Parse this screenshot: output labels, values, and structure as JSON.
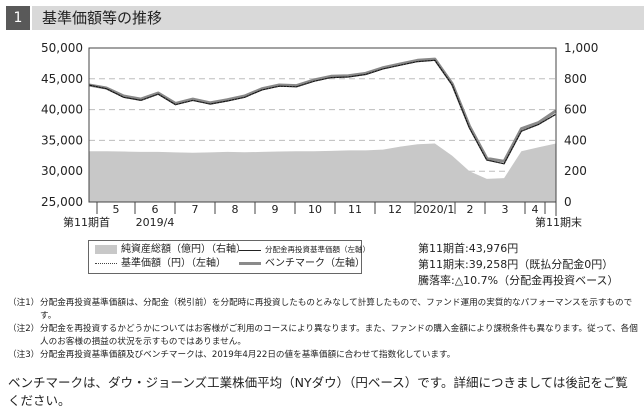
{
  "section": {
    "number": "1",
    "title": "基準価額等の推移"
  },
  "chart_data": {
    "type": "line",
    "left_axis": {
      "ticks": [
        "50,000",
        "45,000",
        "40,000",
        "35,000",
        "30,000",
        "25,000"
      ],
      "range": [
        25000,
        50000
      ]
    },
    "right_axis": {
      "ticks": [
        "1,000",
        "800",
        "600",
        "400",
        "200",
        "0"
      ],
      "range": [
        0,
        1000
      ]
    },
    "x_labels": [
      "第11期首",
      "5",
      "2019/4",
      "6",
      "7",
      "8",
      "9",
      "10",
      "11",
      "12",
      "2020/1",
      "2",
      "3",
      "4",
      "第11期末"
    ],
    "series": [
      {
        "name": "純資産総額（億円）（右軸）",
        "axis": "right",
        "values": [
          330,
          330,
          328,
          325,
          325,
          322,
          320,
          322,
          325,
          323,
          325,
          328,
          330,
          330,
          332,
          335,
          335,
          340,
          360,
          375,
          380,
          300,
          200,
          150,
          155,
          330,
          355,
          380
        ]
      },
      {
        "name": "分配金再投資基準価額（左軸）",
        "axis": "left",
        "values": [
          43976,
          43400,
          42000,
          41500,
          42500,
          40800,
          41500,
          40900,
          41400,
          42000,
          43200,
          43800,
          43700,
          44600,
          45200,
          45300,
          45700,
          46600,
          47200,
          47800,
          48000,
          44000,
          37000,
          31800,
          31200,
          36500,
          37600,
          39258
        ]
      },
      {
        "name": "ベンチマーク（左軸）",
        "axis": "left",
        "values": [
          44000,
          43500,
          42200,
          41700,
          42700,
          41000,
          41700,
          41100,
          41600,
          42200,
          43400,
          44000,
          43900,
          44800,
          45400,
          45500,
          45900,
          46800,
          47400,
          48000,
          48200,
          44200,
          37300,
          32100,
          31600,
          36900,
          37900,
          39800
        ]
      }
    ]
  },
  "legend": {
    "net_assets": "純資産総額（億円）（右軸）",
    "nav": "基準価額（円）（左軸）",
    "reinvested": "分配金再投資基準価額（左軸）",
    "benchmark": "ベンチマーク（左軸）"
  },
  "stats": {
    "start": "第11期首:43,976円",
    "end": "第11期末:39,258円（既払分配金0円）",
    "change": "騰落率:△10.7%（分配金再投資ベース）"
  },
  "notes": [
    {
      "mark": "（注1）",
      "text": "分配金再投資基準価額は、分配金（税引前）を分配時に再投資したものとみなして計算したもので、ファンド運用の実質的なパフォーマンスを示すものです。"
    },
    {
      "mark": "（注2）",
      "text": "分配金を再投資するかどうかについてはお客様がご利用のコースにより異なります。また、ファンドの購入金額により課税条件も異なります。従って、各個人のお客様の損益の状況を示すものではありません。"
    },
    {
      "mark": "（注3）",
      "text": "分配金再投資基準価額及びベンチマークは、2019年4月22日の値を基準価額に合わせて指数化しています。"
    }
  ],
  "benchmark_note": "ベンチマークは、ダウ・ジョーンズ工業株価平均（NYダウ）（円ベース）です。詳細につきましては後記をご覧ください。"
}
